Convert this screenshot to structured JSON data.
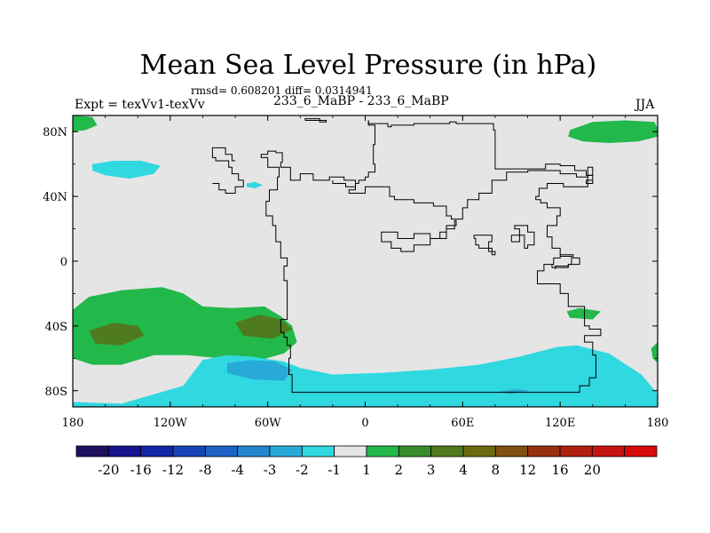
{
  "chart_data": {
    "type": "heatmap",
    "title": "Mean Sea Level Pressure (in hPa)",
    "stats": "rmsd= 0.608201 diff= 0.0314941",
    "left_label": "Expt = texVv1-texVv",
    "center_label": "233_6_MaBP - 233_6_MaBP",
    "right_label": "JJA",
    "x_ticks": [
      {
        "value": -180,
        "label": "180"
      },
      {
        "value": -120,
        "label": "120W"
      },
      {
        "value": -60,
        "label": "60W"
      },
      {
        "value": 0,
        "label": "0"
      },
      {
        "value": 60,
        "label": "60E"
      },
      {
        "value": 120,
        "label": "120E"
      },
      {
        "value": 180,
        "label": "180"
      }
    ],
    "y_ticks": [
      {
        "value": 80,
        "label": "80N"
      },
      {
        "value": 40,
        "label": "40N"
      },
      {
        "value": 0,
        "label": "0"
      },
      {
        "value": -40,
        "label": "40S"
      },
      {
        "value": -80,
        "label": "80S"
      }
    ],
    "xlim": [
      -180,
      180
    ],
    "ylim": [
      -90,
      90
    ],
    "background_color": "#e5e5e5",
    "outline_color": "#000000",
    "colorbar": {
      "colors": [
        "#1f0f5f",
        "#17128f",
        "#1228a8",
        "#1644b8",
        "#1c63c5",
        "#2287cf",
        "#28aad8",
        "#30d8e0",
        "#e5e5e5",
        "#22b84a",
        "#3a8c2a",
        "#4f7a1e",
        "#6b6a10",
        "#7f5010",
        "#983010",
        "#b02010",
        "#c81410",
        "#d80a0a"
      ],
      "labels": [
        "-20",
        "-16",
        "-12",
        "-8",
        "-4",
        "-3",
        "-2",
        "-1",
        "1",
        "2",
        "3",
        "4",
        "8",
        "12",
        "16",
        "20"
      ]
    },
    "regions": [
      {
        "name": "green-northwest-strip",
        "level": "1..2",
        "color": "#22b84a",
        "polygon": [
          [
            -180,
            90
          ],
          [
            -168,
            89
          ],
          [
            -165,
            84
          ],
          [
            -172,
            81
          ],
          [
            -180,
            80
          ]
        ]
      },
      {
        "name": "green-northeast-blob",
        "level": "1..2",
        "color": "#22b84a",
        "polygon": [
          [
            126,
            81
          ],
          [
            140,
            86
          ],
          [
            160,
            87
          ],
          [
            178,
            86
          ],
          [
            180,
            82
          ],
          [
            180,
            77
          ],
          [
            168,
            74
          ],
          [
            150,
            73
          ],
          [
            134,
            74
          ],
          [
            125,
            77
          ]
        ]
      },
      {
        "name": "cyan-north-atlantic",
        "level": "-2..-1",
        "color": "#30d8e0",
        "polygon": [
          [
            -168,
            60
          ],
          [
            -155,
            62
          ],
          [
            -138,
            62
          ],
          [
            -126,
            59
          ],
          [
            -130,
            54
          ],
          [
            -145,
            51
          ],
          [
            -160,
            53
          ],
          [
            -168,
            56
          ]
        ]
      },
      {
        "name": "cyan-small-north",
        "level": "-2..-1",
        "color": "#30d8e0",
        "polygon": [
          [
            -73,
            48
          ],
          [
            -68,
            49
          ],
          [
            -63,
            47
          ],
          [
            -68,
            45
          ],
          [
            -73,
            46
          ]
        ]
      },
      {
        "name": "green-south-pacific",
        "level": "1..2",
        "color": "#22b84a",
        "polygon": [
          [
            -180,
            -30
          ],
          [
            -170,
            -22
          ],
          [
            -150,
            -18
          ],
          [
            -125,
            -16
          ],
          [
            -112,
            -20
          ],
          [
            -100,
            -28
          ],
          [
            -82,
            -29
          ],
          [
            -62,
            -28
          ],
          [
            -52,
            -34
          ],
          [
            -45,
            -40
          ],
          [
            -42,
            -50
          ],
          [
            -50,
            -57
          ],
          [
            -68,
            -62
          ],
          [
            -90,
            -60
          ],
          [
            -110,
            -58
          ],
          [
            -130,
            -58
          ],
          [
            -150,
            -64
          ],
          [
            -168,
            -64
          ],
          [
            -180,
            -60
          ]
        ]
      },
      {
        "name": "darkgreen-southwest",
        "level": "3..4",
        "color": "#4f7a1e",
        "polygon": [
          [
            -170,
            -43
          ],
          [
            -155,
            -38
          ],
          [
            -140,
            -40
          ],
          [
            -136,
            -46
          ],
          [
            -150,
            -52
          ],
          [
            -166,
            -51
          ]
        ]
      },
      {
        "name": "darkgreen-south-center",
        "level": "3..4",
        "color": "#4f7a1e",
        "polygon": [
          [
            -80,
            -38
          ],
          [
            -65,
            -33
          ],
          [
            -52,
            -36
          ],
          [
            -45,
            -42
          ],
          [
            -57,
            -48
          ],
          [
            -75,
            -46
          ]
        ]
      },
      {
        "name": "green-east-south",
        "level": "1..2",
        "color": "#22b84a",
        "polygon": [
          [
            124,
            -31
          ],
          [
            132,
            -29
          ],
          [
            145,
            -31
          ],
          [
            140,
            -36
          ],
          [
            126,
            -35
          ]
        ]
      },
      {
        "name": "green-east-edge",
        "level": "1..2",
        "color": "#22b84a",
        "polygon": [
          [
            180,
            -50
          ],
          [
            176,
            -54
          ],
          [
            177,
            -60
          ],
          [
            180,
            -63
          ]
        ]
      },
      {
        "name": "cyan-antarctic-band",
        "level": "-2..-1",
        "color": "#30d8e0",
        "polygon": [
          [
            -180,
            -90
          ],
          [
            -180,
            -87
          ],
          [
            -150,
            -88
          ],
          [
            -112,
            -77
          ],
          [
            -100,
            -61
          ],
          [
            -85,
            -58
          ],
          [
            -70,
            -59
          ],
          [
            -50,
            -62
          ],
          [
            -40,
            -66
          ],
          [
            -20,
            -70
          ],
          [
            10,
            -69
          ],
          [
            40,
            -67
          ],
          [
            70,
            -64
          ],
          [
            95,
            -59
          ],
          [
            118,
            -53
          ],
          [
            130,
            -52
          ],
          [
            150,
            -57
          ],
          [
            170,
            -70
          ],
          [
            180,
            -82
          ],
          [
            180,
            -90
          ]
        ]
      },
      {
        "name": "blue-antarctic-core",
        "level": "-3..-2",
        "color": "#28aad8",
        "polygon": [
          [
            -85,
            -63
          ],
          [
            -70,
            -61
          ],
          [
            -55,
            -62
          ],
          [
            -45,
            -67
          ],
          [
            -50,
            -74
          ],
          [
            -70,
            -73
          ],
          [
            -85,
            -69
          ]
        ]
      },
      {
        "name": "blue-antarctic-small",
        "level": "-3..-2",
        "color": "#28aad8",
        "polygon": [
          [
            80,
            -81
          ],
          [
            92,
            -79
          ],
          [
            102,
            -80
          ],
          [
            90,
            -82
          ]
        ]
      }
    ],
    "outlines": [
      [
        [
          -60,
          66
        ],
        [
          -55,
          68
        ],
        [
          -51,
          67
        ],
        [
          -52,
          61
        ],
        [
          -46,
          58
        ],
        [
          -46,
          50
        ],
        [
          -40,
          50
        ],
        [
          -32,
          54
        ],
        [
          -22,
          50
        ],
        [
          -13,
          52
        ],
        [
          -6,
          50
        ],
        [
          -10,
          44
        ],
        [
          0,
          42
        ],
        [
          15,
          46
        ],
        [
          18,
          40
        ],
        [
          30,
          38
        ],
        [
          42,
          36
        ],
        [
          50,
          34
        ],
        [
          53,
          28
        ],
        [
          60,
          26
        ],
        [
          63,
          33
        ],
        [
          70,
          38
        ],
        [
          78,
          42
        ],
        [
          87,
          50
        ],
        [
          100,
          55
        ],
        [
          108,
          56
        ],
        [
          120,
          56
        ],
        [
          130,
          54
        ],
        [
          137,
          52
        ],
        [
          140,
          53
        ],
        [
          137,
          48
        ],
        [
          132,
          46
        ],
        [
          122,
          46
        ],
        [
          112,
          48
        ],
        [
          107,
          45
        ],
        [
          105,
          40
        ],
        [
          108,
          38
        ],
        [
          112,
          36
        ],
        [
          120,
          33
        ],
        [
          118,
          28
        ],
        [
          112,
          22
        ],
        [
          115,
          15
        ],
        [
          120,
          8
        ],
        [
          116,
          2
        ],
        [
          110,
          -2
        ],
        [
          106,
          -6
        ],
        [
          120,
          -14
        ],
        [
          125,
          -20
        ],
        [
          128,
          -28
        ],
        [
          135,
          -28
        ],
        [
          138,
          -40
        ],
        [
          145,
          -42
        ],
        [
          135,
          -46
        ],
        [
          140,
          -50
        ],
        [
          142,
          -58
        ],
        [
          138,
          -72
        ],
        [
          132,
          -77
        ],
        [
          130,
          -81
        ],
        [
          -45,
          -81
        ],
        [
          -47,
          -70
        ],
        [
          -46,
          -60
        ],
        [
          -48,
          -52
        ],
        [
          -50,
          -47
        ],
        [
          -52,
          -44
        ],
        [
          -48,
          -36
        ],
        [
          -48,
          -20
        ],
        [
          -50,
          -12
        ],
        [
          -48,
          -3
        ],
        [
          -52,
          2
        ],
        [
          -52,
          4
        ],
        [
          -55,
          12
        ],
        [
          -57,
          22
        ],
        [
          -61,
          28
        ],
        [
          -59,
          37
        ],
        [
          -54,
          44
        ],
        [
          -53,
          52
        ],
        [
          -60,
          58
        ],
        [
          -64,
          64
        ],
        [
          -60,
          66
        ]
      ],
      [
        [
          2,
          87
        ],
        [
          2,
          86
        ],
        [
          14,
          85
        ],
        [
          16,
          83
        ],
        [
          30,
          84
        ],
        [
          52,
          85
        ],
        [
          56,
          86
        ],
        [
          79,
          85
        ],
        [
          80,
          81
        ],
        [
          80,
          62
        ],
        [
          95,
          57
        ],
        [
          111,
          57
        ],
        [
          120,
          60
        ],
        [
          129,
          59
        ],
        [
          136,
          56
        ],
        [
          140,
          53
        ],
        [
          137,
          58
        ],
        [
          136,
          48
        ],
        [
          140,
          50
        ]
      ],
      [
        [
          2,
          87
        ],
        [
          2,
          85
        ],
        [
          6,
          84
        ],
        [
          5,
          72
        ],
        [
          6,
          60
        ],
        [
          2,
          55
        ],
        [
          0,
          52
        ],
        [
          -4,
          50
        ],
        [
          -6,
          48
        ],
        [
          -12,
          46
        ],
        [
          -20,
          48
        ],
        [
          -20,
          50
        ]
      ],
      [
        [
          -37,
          87
        ],
        [
          -28,
          88
        ],
        [
          -24,
          86
        ],
        [
          -37,
          87
        ]
      ],
      [
        [
          -94,
          68
        ],
        [
          -92,
          64
        ],
        [
          -84,
          62
        ],
        [
          -82,
          58
        ],
        [
          -78,
          54
        ],
        [
          -75,
          50
        ],
        [
          -80,
          46
        ],
        [
          -86,
          42
        ],
        [
          -90,
          44
        ],
        [
          -94,
          48
        ]
      ],
      [
        [
          -94,
          68
        ],
        [
          -86,
          70
        ],
        [
          -82,
          66
        ],
        [
          -80,
          62
        ]
      ],
      [
        [
          10,
          15
        ],
        [
          20,
          18
        ],
        [
          30,
          14
        ],
        [
          40,
          17
        ],
        [
          50,
          14
        ],
        [
          55,
          20
        ],
        [
          56,
          25
        ],
        [
          50,
          22
        ],
        [
          46,
          18
        ],
        [
          40,
          14
        ],
        [
          30,
          10
        ],
        [
          22,
          6
        ],
        [
          16,
          8
        ],
        [
          10,
          12
        ],
        [
          10,
          15
        ]
      ],
      [
        [
          67,
          14
        ],
        [
          78,
          16
        ],
        [
          76,
          12
        ],
        [
          80,
          6
        ],
        [
          78,
          4
        ],
        [
          70,
          8
        ],
        [
          68,
          10
        ],
        [
          67,
          14
        ]
      ],
      [
        [
          90,
          12
        ],
        [
          98,
          16
        ],
        [
          100,
          8
        ],
        [
          104,
          10
        ],
        [
          104,
          14
        ],
        [
          100,
          18
        ],
        [
          92,
          22
        ],
        [
          95,
          20
        ],
        [
          90,
          12
        ]
      ],
      [
        [
          117,
          -5
        ],
        [
          125,
          -3
        ],
        [
          132,
          -2
        ],
        [
          128,
          2
        ],
        [
          120,
          4
        ]
      ],
      [
        [
          115,
          -2
        ],
        [
          125,
          -4
        ],
        [
          127,
          -2
        ],
        [
          124,
          3
        ],
        [
          120,
          3
        ]
      ]
    ]
  },
  "labels": {
    "title": "Mean Sea Level Pressure (in hPa)",
    "stats": "rmsd= 0.608201 diff= 0.0314941",
    "left": "Expt = texVv1-texVv",
    "center": "233_6_MaBP - 233_6_MaBP",
    "right": "JJA"
  }
}
